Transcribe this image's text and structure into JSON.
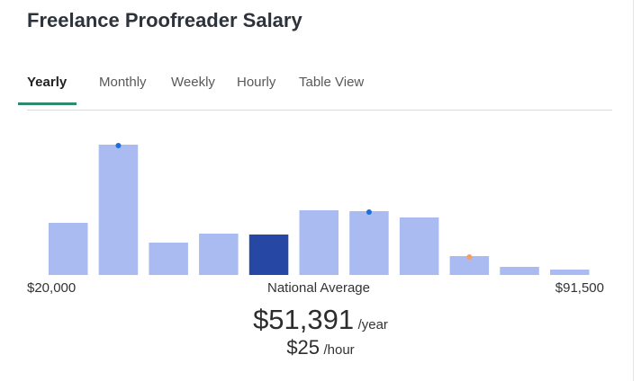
{
  "header": {
    "title": "Freelance Proofreader Salary"
  },
  "tabs": [
    {
      "label": "Yearly",
      "active": true
    },
    {
      "label": "Monthly",
      "active": false
    },
    {
      "label": "Weekly",
      "active": false
    },
    {
      "label": "Hourly",
      "active": false
    },
    {
      "label": "Table View",
      "active": false
    }
  ],
  "chart_data": {
    "type": "bar",
    "categories": [
      null,
      null,
      null,
      null,
      null,
      null,
      null,
      null,
      null,
      null,
      null
    ],
    "values": [
      58,
      145,
      36,
      46,
      45,
      72,
      71,
      64,
      21,
      9,
      6
    ],
    "colors": [
      "#a9bbf0",
      "#a9bbf0",
      "#a9bbf0",
      "#a9bbf0",
      "#2647a3",
      "#a9bbf0",
      "#a9bbf0",
      "#a9bbf0",
      "#a9bbf0",
      "#a9bbf0",
      "#a9bbf0"
    ],
    "dot_colors": [
      null,
      "#1a6fdc",
      null,
      null,
      null,
      null,
      "#1a6fdc",
      null,
      "#f5a15a",
      null,
      null
    ],
    "ylim": [
      0,
      150
    ]
  },
  "salary": {
    "range_min": "$20,000",
    "caption": "National Average",
    "range_max": "$91,500",
    "annual": "$51,391",
    "annual_unit": "/year",
    "hourly": "$25",
    "hourly_unit": "/hour"
  }
}
